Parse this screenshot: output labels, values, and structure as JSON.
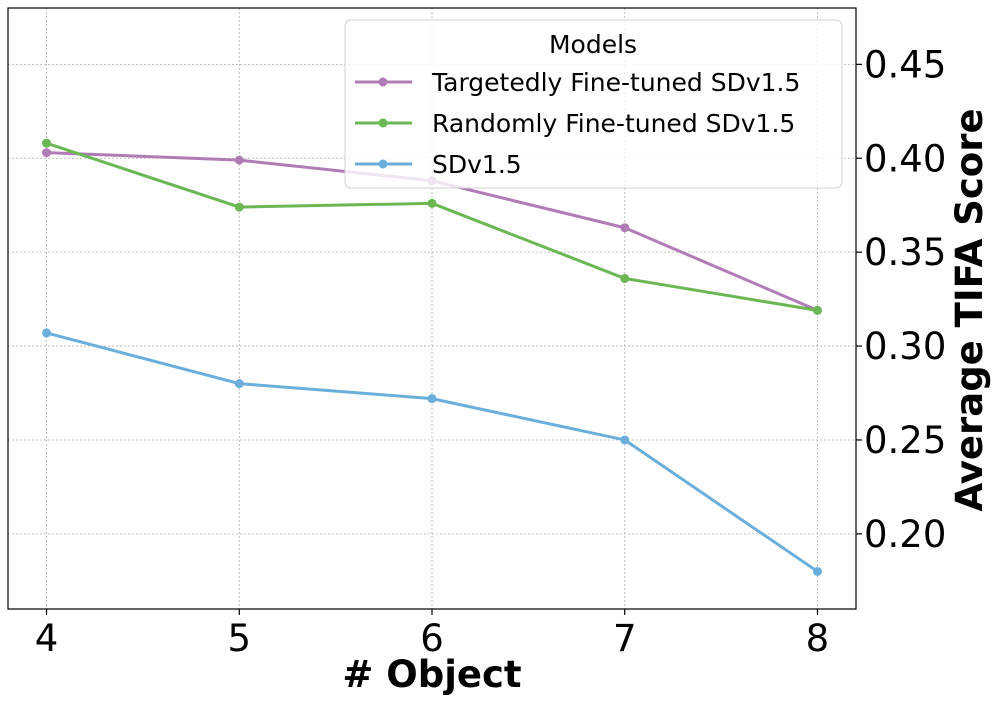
{
  "chart_data": {
    "type": "line",
    "title": "",
    "xlabel": "# Object",
    "ylabel": "Average TIFA Score",
    "x": [
      4,
      5,
      6,
      7,
      8
    ],
    "x_ticks": [
      "4",
      "5",
      "6",
      "7",
      "8"
    ],
    "y_ticks": [
      "0.20",
      "0.25",
      "0.30",
      "0.35",
      "0.40",
      "0.45"
    ],
    "xlim": [
      3.8,
      8.2
    ],
    "ylim": [
      0.16,
      0.48
    ],
    "y_axis_side": "right",
    "grid": true,
    "legend": {
      "title": "Models",
      "placement": "upper-right"
    },
    "series": [
      {
        "name": "Targetedly Fine-tuned SDv1.5",
        "color": "#b07cb6",
        "values": [
          0.403,
          0.399,
          0.388,
          0.363,
          0.319
        ]
      },
      {
        "name": "Randomly Fine-tuned SDv1.5",
        "color": "#6ab753",
        "values": [
          0.408,
          0.374,
          0.376,
          0.336,
          0.319
        ]
      },
      {
        "name": "SDv1.5",
        "color": "#6aafdc",
        "values": [
          0.307,
          0.28,
          0.272,
          0.25,
          0.18
        ]
      }
    ]
  }
}
